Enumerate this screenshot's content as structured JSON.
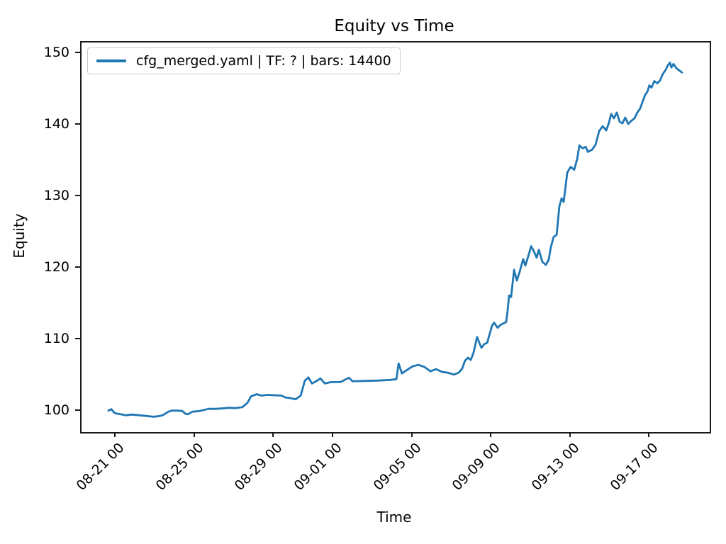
{
  "title": "Equity vs Time",
  "axes": {
    "xlabel": "Time",
    "ylabel": "Equity"
  },
  "legend": {
    "label": "cfg_merged.yaml | TF: ? | bars: 14400",
    "line_color": "#1f77b4"
  },
  "colors": {
    "line": "#1f77b4",
    "spine": "#1a1a1a",
    "background": "#ffffff"
  },
  "chart_data": {
    "type": "line",
    "title": "Equity vs Time",
    "xlabel": "Time",
    "ylabel": "Equity",
    "grid": false,
    "legend_position": "upper left",
    "x_axis_note": "x expressed as days since 08-21 00:00",
    "x_range_days": [
      -1.76,
      30.0
    ],
    "y_range": [
      97.1,
      151.6
    ],
    "y_ticks": [
      100,
      110,
      120,
      130,
      140,
      150
    ],
    "x_ticks": [
      {
        "day": 0,
        "label": "08-21 00"
      },
      {
        "day": 4,
        "label": "08-25 00"
      },
      {
        "day": 8,
        "label": "08-29 00"
      },
      {
        "day": 11,
        "label": "09-01 00"
      },
      {
        "day": 15,
        "label": "09-05 00"
      },
      {
        "day": 19,
        "label": "09-09 00"
      },
      {
        "day": 23,
        "label": "09-13 00"
      },
      {
        "day": 27,
        "label": "09-17 00"
      }
    ],
    "series": [
      {
        "name": "cfg_merged.yaml | TF: ? | bars: 14400",
        "color": "#1f77b4",
        "points": [
          [
            -0.4,
            100.1
          ],
          [
            -0.25,
            100.3
          ],
          [
            -0.1,
            99.8
          ],
          [
            0.0,
            99.7
          ],
          [
            0.2,
            99.6
          ],
          [
            0.47,
            99.45
          ],
          [
            0.8,
            99.55
          ],
          [
            1.0,
            99.5
          ],
          [
            1.36,
            99.4
          ],
          [
            1.7,
            99.3
          ],
          [
            1.9,
            99.25
          ],
          [
            2.2,
            99.35
          ],
          [
            2.37,
            99.5
          ],
          [
            2.6,
            99.9
          ],
          [
            2.8,
            100.1
          ],
          [
            3.1,
            100.1
          ],
          [
            3.33,
            100.05
          ],
          [
            3.5,
            99.65
          ],
          [
            3.62,
            99.6
          ],
          [
            3.85,
            99.95
          ],
          [
            4.05,
            100.0
          ],
          [
            4.3,
            100.1
          ],
          [
            4.66,
            100.35
          ],
          [
            5.0,
            100.35
          ],
          [
            5.3,
            100.4
          ],
          [
            5.73,
            100.5
          ],
          [
            6.0,
            100.45
          ],
          [
            6.38,
            100.6
          ],
          [
            6.63,
            101.2
          ],
          [
            6.81,
            102.1
          ],
          [
            7.1,
            102.4
          ],
          [
            7.35,
            102.2
          ],
          [
            7.63,
            102.3
          ],
          [
            8.0,
            102.25
          ],
          [
            8.35,
            102.2
          ],
          [
            8.55,
            101.95
          ],
          [
            8.71,
            101.9
          ],
          [
            9.07,
            101.7
          ],
          [
            9.32,
            102.2
          ],
          [
            9.53,
            104.3
          ],
          [
            9.71,
            104.75
          ],
          [
            9.89,
            103.9
          ],
          [
            10.1,
            104.2
          ],
          [
            10.32,
            104.6
          ],
          [
            10.54,
            103.9
          ],
          [
            10.86,
            104.1
          ],
          [
            11.33,
            104.1
          ],
          [
            11.76,
            104.7
          ],
          [
            11.94,
            104.2
          ],
          [
            12.47,
            104.25
          ],
          [
            13.19,
            104.3
          ],
          [
            13.84,
            104.4
          ],
          [
            14.16,
            104.5
          ],
          [
            14.27,
            106.7
          ],
          [
            14.44,
            105.3
          ],
          [
            14.7,
            105.8
          ],
          [
            14.98,
            106.3
          ],
          [
            15.27,
            106.5
          ],
          [
            15.59,
            106.2
          ],
          [
            15.88,
            105.6
          ],
          [
            16.16,
            105.9
          ],
          [
            16.49,
            105.5
          ],
          [
            16.77,
            105.4
          ],
          [
            17.06,
            105.15
          ],
          [
            17.31,
            105.4
          ],
          [
            17.49,
            106.0
          ],
          [
            17.63,
            107.1
          ],
          [
            17.78,
            107.5
          ],
          [
            17.92,
            107.2
          ],
          [
            18.06,
            108.2
          ],
          [
            18.24,
            110.4
          ],
          [
            18.35,
            109.6
          ],
          [
            18.46,
            108.9
          ],
          [
            18.6,
            109.4
          ],
          [
            18.75,
            109.6
          ],
          [
            18.85,
            110.6
          ],
          [
            19.0,
            112.0
          ],
          [
            19.1,
            112.4
          ],
          [
            19.28,
            111.7
          ],
          [
            19.43,
            112.1
          ],
          [
            19.57,
            112.3
          ],
          [
            19.71,
            112.5
          ],
          [
            19.78,
            114.0
          ],
          [
            19.86,
            116.2
          ],
          [
            19.96,
            116.0
          ],
          [
            20.11,
            119.8
          ],
          [
            20.25,
            118.3
          ],
          [
            20.39,
            119.5
          ],
          [
            20.57,
            121.3
          ],
          [
            20.68,
            120.4
          ],
          [
            20.86,
            122.0
          ],
          [
            20.97,
            123.1
          ],
          [
            21.11,
            122.4
          ],
          [
            21.25,
            121.5
          ],
          [
            21.36,
            122.6
          ],
          [
            21.54,
            120.9
          ],
          [
            21.72,
            120.5
          ],
          [
            21.86,
            121.2
          ],
          [
            21.97,
            123.0
          ],
          [
            22.11,
            124.4
          ],
          [
            22.26,
            124.7
          ],
          [
            22.4,
            128.7
          ],
          [
            22.51,
            129.8
          ],
          [
            22.62,
            129.3
          ],
          [
            22.8,
            133.4
          ],
          [
            22.97,
            134.2
          ],
          [
            23.15,
            133.8
          ],
          [
            23.3,
            135.3
          ],
          [
            23.41,
            137.2
          ],
          [
            23.58,
            136.8
          ],
          [
            23.73,
            137.0
          ],
          [
            23.84,
            136.3
          ],
          [
            24.05,
            136.6
          ],
          [
            24.23,
            137.3
          ],
          [
            24.41,
            139.2
          ],
          [
            24.59,
            139.9
          ],
          [
            24.77,
            139.3
          ],
          [
            24.91,
            140.4
          ],
          [
            25.02,
            141.6
          ],
          [
            25.16,
            141.0
          ],
          [
            25.3,
            141.8
          ],
          [
            25.45,
            140.5
          ],
          [
            25.59,
            140.3
          ],
          [
            25.73,
            141.1
          ],
          [
            25.88,
            140.2
          ],
          [
            26.02,
            140.6
          ],
          [
            26.2,
            141.0
          ],
          [
            26.34,
            141.8
          ],
          [
            26.49,
            142.4
          ],
          [
            26.63,
            143.5
          ],
          [
            26.74,
            144.3
          ],
          [
            26.85,
            144.7
          ],
          [
            26.95,
            145.6
          ],
          [
            27.06,
            145.3
          ],
          [
            27.2,
            146.2
          ],
          [
            27.35,
            145.9
          ],
          [
            27.49,
            146.3
          ],
          [
            27.63,
            147.2
          ],
          [
            27.78,
            147.8
          ],
          [
            27.88,
            148.4
          ],
          [
            27.99,
            148.8
          ],
          [
            28.06,
            148.1
          ],
          [
            28.17,
            148.6
          ],
          [
            28.32,
            148.0
          ],
          [
            28.46,
            147.7
          ],
          [
            28.6,
            147.4
          ]
        ]
      }
    ]
  }
}
